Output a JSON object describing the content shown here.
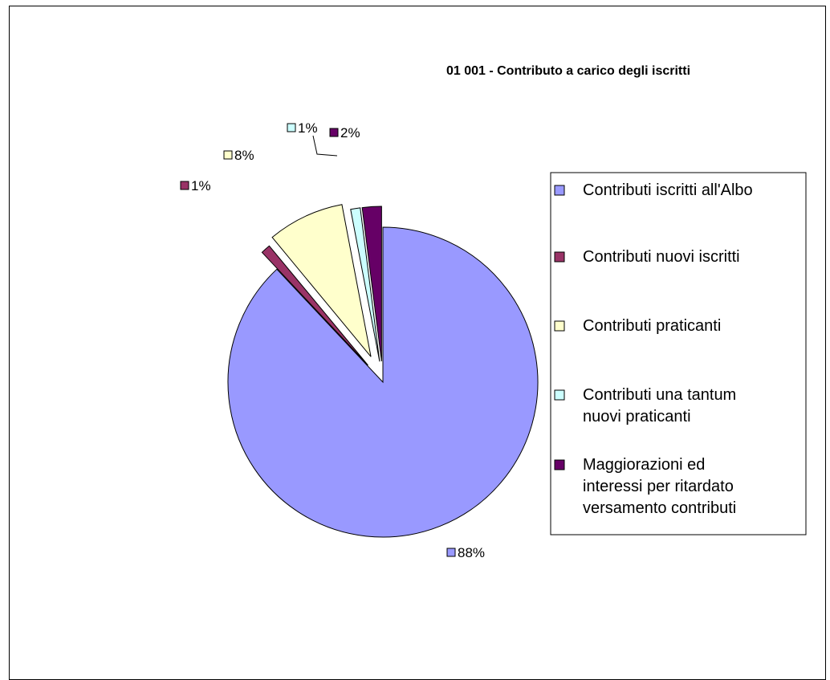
{
  "chart_data": {
    "type": "pie",
    "title": "01 001 - Contributo a carico degli iscritti",
    "legend_position": "right",
    "series": [
      {
        "name": "Contributi iscritti all'Albo",
        "legend_lines": [
          "Contributi iscritti all'Albo"
        ],
        "value": 88,
        "label": "88%",
        "color": "#9999ff"
      },
      {
        "name": "Contributi nuovi iscritti",
        "legend_lines": [
          "Contributi nuovi iscritti"
        ],
        "value": 1,
        "label": "1%",
        "color": "#993366"
      },
      {
        "name": "Contributi praticanti",
        "legend_lines": [
          "Contributi praticanti"
        ],
        "value": 8,
        "label": "8%",
        "color": "#ffffcc"
      },
      {
        "name": "Contributi una tantum nuovi praticanti",
        "legend_lines": [
          "Contributi una tantum",
          "nuovi praticanti"
        ],
        "value": 1,
        "label": "1%",
        "color": "#ccffff"
      },
      {
        "name": "Maggiorazioni ed interessi per ritardato versamento contributi",
        "legend_lines": [
          "Maggiorazioni ed",
          "interessi per ritardato",
          "versamento contributi"
        ],
        "value": 2,
        "label": "2%",
        "color": "#660066"
      }
    ]
  }
}
